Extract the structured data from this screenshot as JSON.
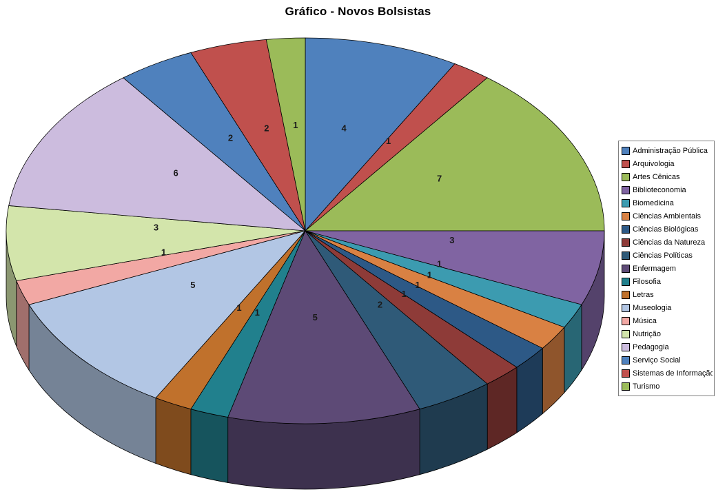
{
  "chart_data": {
    "type": "pie",
    "style": "3d",
    "title": "Gráfico - Novos Bolsistas",
    "legend_position": "right",
    "data_labels": "values",
    "total": 48,
    "categories": [
      "Administração Pública",
      "Arquivologia",
      "Artes Cênicas",
      "Biblioteconomia",
      "Biomedicina",
      "Ciências Ambientais",
      "Ciências Biológicas",
      "Ciências da Natureza",
      "Ciências Políticas",
      "Enfermagem",
      "Filosofia",
      "Letras",
      "Museologia",
      "Música",
      "Nutrição",
      "Pedagogia",
      "Serviço Social",
      "Sistemas de Informação",
      "Turismo"
    ],
    "values": [
      4,
      1,
      7,
      3,
      1,
      1,
      1,
      1,
      2,
      5,
      1,
      1,
      5,
      1,
      3,
      6,
      2,
      2,
      1
    ],
    "colors": [
      "#4F81BD",
      "#C0504D",
      "#9BBB59",
      "#8064A2",
      "#3C9BB0",
      "#D98143",
      "#2D5986",
      "#8E3B38",
      "#2F5A78",
      "#5D4A76",
      "#21808D",
      "#C0712C",
      "#B2C6E4",
      "#F2A8A4",
      "#D3E5AB",
      "#CCBCDE",
      "#4F81BD",
      "#C0504D",
      "#9BBB59"
    ],
    "label_color": "#1a1a1a",
    "outline_color": "#000000",
    "legend_border_color": "#808080",
    "background_color": "#FFFFFF"
  }
}
